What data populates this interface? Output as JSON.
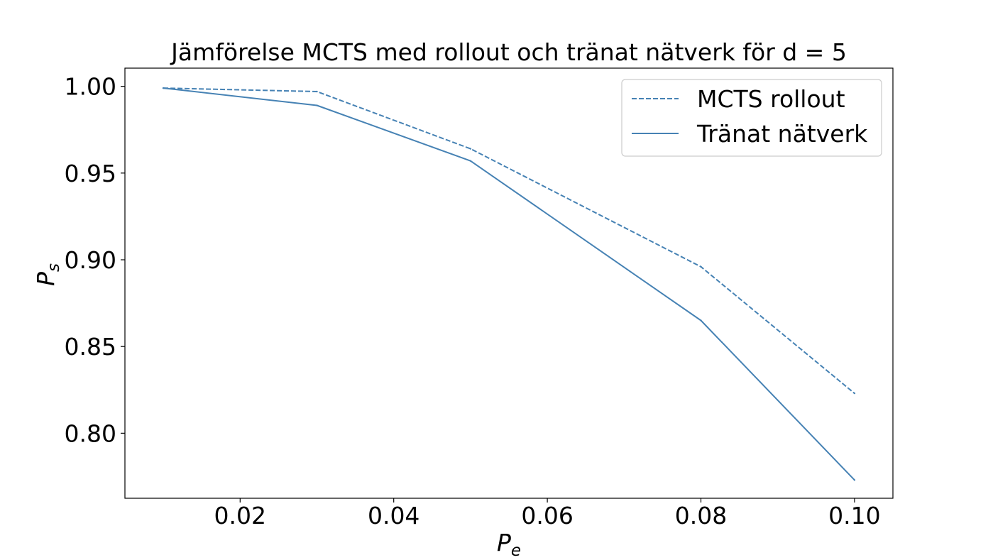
{
  "chart_data": {
    "type": "line",
    "title": "Jämförelse MCTS med rollout och tränat nätverk för d = 5",
    "xlabel": {
      "main": "P",
      "sub": "e"
    },
    "ylabel": {
      "main": "P",
      "sub": "s"
    },
    "xlim": [
      0.005,
      0.105
    ],
    "ylim": [
      0.7625,
      1.0105
    ],
    "x_ticks": [
      {
        "value": 0.02,
        "label": "0.02"
      },
      {
        "value": 0.04,
        "label": "0.04"
      },
      {
        "value": 0.06,
        "label": "0.06"
      },
      {
        "value": 0.08,
        "label": "0.08"
      },
      {
        "value": 0.1,
        "label": "0.10"
      }
    ],
    "y_ticks": [
      {
        "value": 0.8,
        "label": "0.80"
      },
      {
        "value": 0.85,
        "label": "0.85"
      },
      {
        "value": 0.9,
        "label": "0.90"
      },
      {
        "value": 0.95,
        "label": "0.95"
      },
      {
        "value": 1.0,
        "label": "1.00"
      }
    ],
    "x": [
      0.01,
      0.03,
      0.05,
      0.08,
      0.1
    ],
    "series": [
      {
        "name": "MCTS rollout",
        "values": [
          0.999,
          0.997,
          0.964,
          0.896,
          0.823
        ],
        "style": "dashed",
        "color": "#4682b4"
      },
      {
        "name": "Tränat nätverk",
        "values": [
          0.999,
          0.989,
          0.957,
          0.865,
          0.773
        ],
        "style": "solid",
        "color": "#4682b4"
      }
    ],
    "legend": "top-right",
    "grid": false
  }
}
